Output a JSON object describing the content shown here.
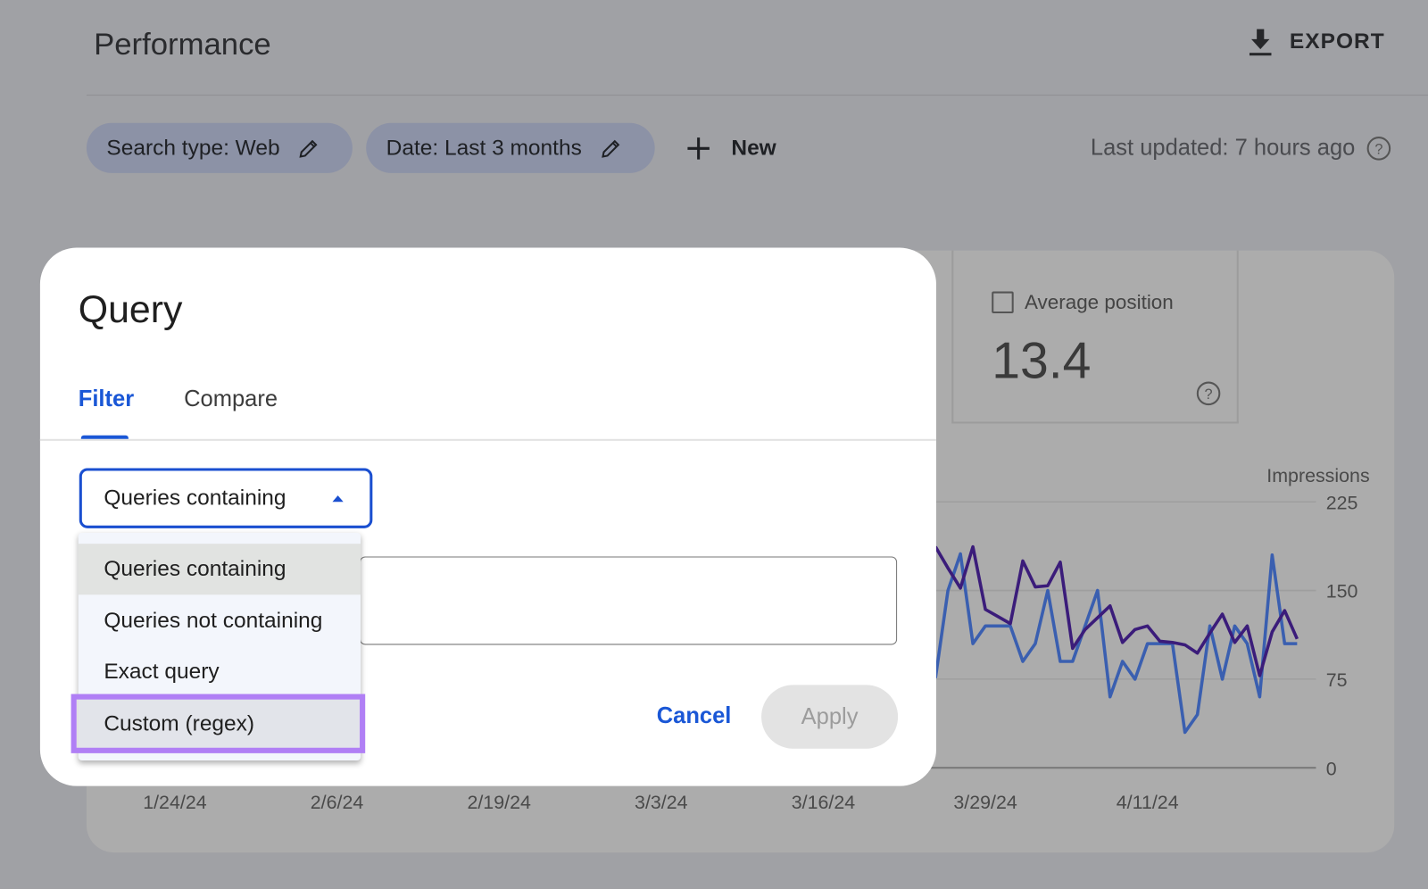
{
  "header": {
    "title": "Performance",
    "export_label": "EXPORT",
    "export_icon": "download-icon"
  },
  "filters": {
    "chips": [
      {
        "label": "Search type: Web",
        "icon": "pencil-icon"
      },
      {
        "label": "Date: Last 3 months",
        "icon": "pencil-icon"
      }
    ],
    "new_label": "New",
    "last_updated": "Last updated: 7 hours ago"
  },
  "metric": {
    "label": "Average position",
    "value": "13.4",
    "checked": false
  },
  "chart_data": {
    "type": "line",
    "ylabel": "Impressions",
    "ylim": [
      0,
      225
    ],
    "yticks": [
      "225",
      "150",
      "75",
      "0"
    ],
    "xticks": [
      "1/24/24",
      "2/6/24",
      "2/19/24",
      "3/3/24",
      "3/16/24",
      "3/29/24",
      "4/11/24"
    ],
    "grid": true,
    "x": [
      "3/25/24",
      "3/26/24",
      "3/27/24",
      "3/28/24",
      "3/29/24",
      "3/30/24",
      "3/31/24",
      "4/1/24",
      "4/2/24",
      "4/3/24",
      "4/4/24",
      "4/5/24",
      "4/6/24",
      "4/7/24",
      "4/8/24",
      "4/9/24",
      "4/10/24",
      "4/11/24",
      "4/12/24",
      "4/13/24",
      "4/14/24",
      "4/15/24",
      "4/16/24",
      "4/17/24",
      "4/18/24",
      "4/19/24",
      "4/20/24",
      "4/21/24",
      "4/22/24",
      "4/23/24"
    ],
    "series": [
      {
        "color": "#3b1c7a",
        "values": [
          187,
          169,
          152,
          187,
          134,
          128,
          122,
          175,
          153,
          154,
          174,
          101,
          117,
          127,
          137,
          106,
          117,
          120,
          107,
          106,
          104,
          97,
          114,
          130,
          106,
          120,
          78,
          115,
          133,
          109
        ]
      },
      {
        "color": "#3a5fb0",
        "values": [
          76,
          150,
          181,
          105,
          120,
          120,
          120,
          90,
          105,
          150,
          90,
          90,
          120,
          150,
          60,
          90,
          75,
          105,
          105,
          105,
          30,
          45,
          120,
          75,
          120,
          105,
          60,
          180,
          105,
          105
        ]
      }
    ]
  },
  "dialog": {
    "title": "Query",
    "tabs": [
      {
        "label": "Filter",
        "active": true
      },
      {
        "label": "Compare",
        "active": false
      }
    ],
    "select_value": "Queries containing",
    "options": [
      "Queries containing",
      "Queries not containing",
      "Exact query",
      "Custom (regex)"
    ],
    "input_value": "",
    "cancel_label": "Cancel",
    "apply_label": "Apply",
    "accent": "#1a57d6",
    "highlight_color": "#b07ff5"
  }
}
